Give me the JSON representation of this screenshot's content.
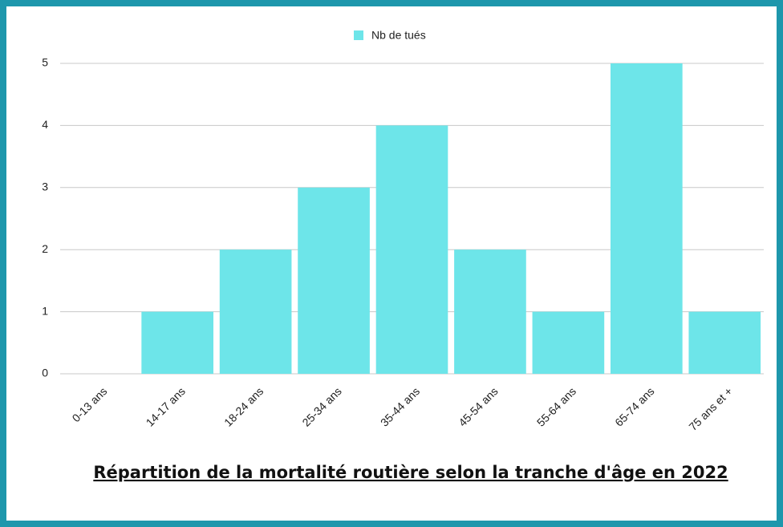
{
  "chart_data": {
    "type": "bar",
    "title": "Répartition de la mortalité routière selon la tranche d'âge en 2022",
    "categories": [
      "0-13 ans",
      "14-17 ans",
      "18-24 ans",
      "25-34 ans",
      "35-44 ans",
      "45-54 ans",
      "55-64 ans",
      "65-74 ans",
      "75 ans et +"
    ],
    "series": [
      {
        "name": "Nb de tués",
        "color": "#6de5e9",
        "values": [
          0,
          1,
          2,
          3,
          4,
          2,
          1,
          5,
          1
        ]
      }
    ],
    "ylim": [
      0,
      5
    ],
    "yticks": [
      0,
      1,
      2,
      3,
      4,
      5
    ],
    "grid": true,
    "legend": "top"
  }
}
